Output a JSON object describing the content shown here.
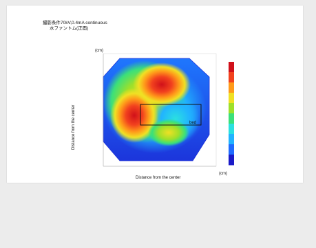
{
  "title": {
    "line1": "撮影条件70kV,0.4mA continuous",
    "line2": "水ファントム(正面)"
  },
  "chart_data": {
    "type": "heatmap",
    "title": "撮影条件70kV,0.4mA continuous",
    "subtitle": "水ファントム(正面)",
    "xlabel": "Distance from the center",
    "ylabel": "Distance from the center",
    "x_unit": "(cm)",
    "y_unit": "(cm)",
    "box_label": "bed",
    "colorscale": [
      "#1a1ac8",
      "#1f6bff",
      "#21b3ff",
      "#2be0e0",
      "#3be07a",
      "#9ee02a",
      "#f0e024",
      "#ff9a1a",
      "#f2421e",
      "#d0101a"
    ]
  }
}
